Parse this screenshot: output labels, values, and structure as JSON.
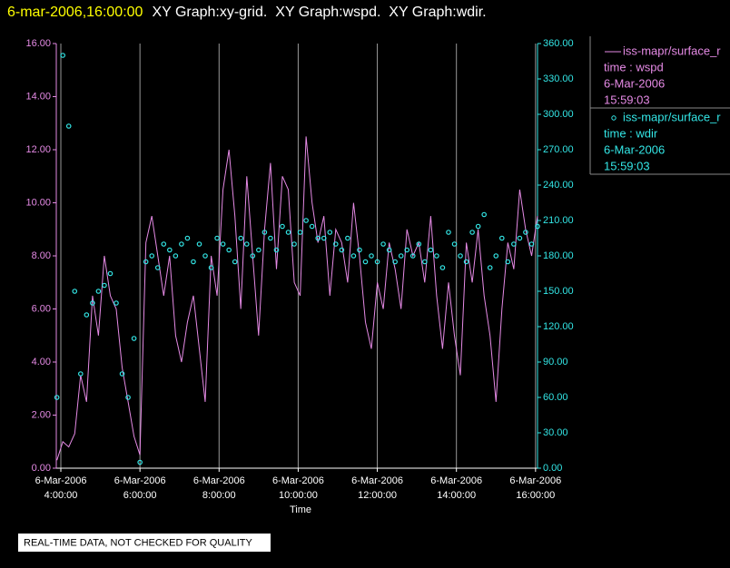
{
  "chart_data": {
    "type": "line",
    "title_time": "6-mar-2006,16:00:00",
    "title": "XY Graph:xy-grid.  XY Graph:wspd.  XY Graph:wdir.",
    "xlabel": "Time",
    "note": "REAL-TIME DATA, NOT CHECKED FOR QUALITY",
    "grid": true,
    "xlim": [
      3.885,
      16.05
    ],
    "ylim": [
      0,
      16
    ],
    "y2lim": [
      0,
      360
    ],
    "xticks": [
      {
        "value": 4,
        "label": "4:00:00",
        "date": "6-Mar-2006"
      },
      {
        "value": 6,
        "label": "6:00:00",
        "date": "6-Mar-2006"
      },
      {
        "value": 8,
        "label": "8:00:00",
        "date": "6-Mar-2006"
      },
      {
        "value": 10,
        "label": "10:00:00",
        "date": "6-Mar-2006"
      },
      {
        "value": 12,
        "label": "12:00:00",
        "date": "6-Mar-2006"
      },
      {
        "value": 14,
        "label": "14:00:00",
        "date": "6-Mar-2006"
      },
      {
        "value": 16,
        "label": "16:00:00",
        "date": "6-Mar-2006"
      }
    ],
    "yticks": [
      {
        "value": 0,
        "label": "0.00"
      },
      {
        "value": 2,
        "label": "2.00"
      },
      {
        "value": 4,
        "label": "4.00"
      },
      {
        "value": 6,
        "label": "6.00"
      },
      {
        "value": 8,
        "label": "8.00"
      },
      {
        "value": 10,
        "label": "10.00"
      },
      {
        "value": 12,
        "label": "12.00"
      },
      {
        "value": 14,
        "label": "14.00"
      },
      {
        "value": 16,
        "label": "16.00"
      }
    ],
    "y2ticks": [
      {
        "value": 0,
        "label": "0.00"
      },
      {
        "value": 30,
        "label": "30.00"
      },
      {
        "value": 60,
        "label": "60.00"
      },
      {
        "value": 90,
        "label": "90.00"
      },
      {
        "value": 120,
        "label": "120.00"
      },
      {
        "value": 150,
        "label": "150.00"
      },
      {
        "value": 180,
        "label": "180.00"
      },
      {
        "value": 210,
        "label": "210.00"
      },
      {
        "value": 240,
        "label": "240.00"
      },
      {
        "value": 270,
        "label": "270.00"
      },
      {
        "value": 300,
        "label": "300.00"
      },
      {
        "value": 330,
        "label": "330.00"
      },
      {
        "value": 360,
        "label": "360.00"
      }
    ],
    "x": [
      3.9,
      4.05,
      4.2,
      4.35,
      4.5,
      4.65,
      4.8,
      4.95,
      5.1,
      5.25,
      5.4,
      5.55,
      5.7,
      5.85,
      6.0,
      6.15,
      6.3,
      6.45,
      6.6,
      6.75,
      6.9,
      7.05,
      7.2,
      7.35,
      7.5,
      7.65,
      7.8,
      7.95,
      8.1,
      8.25,
      8.4,
      8.55,
      8.7,
      8.85,
      9.0,
      9.15,
      9.3,
      9.45,
      9.6,
      9.75,
      9.9,
      10.05,
      10.2,
      10.35,
      10.5,
      10.65,
      10.8,
      10.95,
      11.1,
      11.25,
      11.4,
      11.55,
      11.7,
      11.85,
      12.0,
      12.15,
      12.3,
      12.45,
      12.6,
      12.75,
      12.9,
      13.05,
      13.2,
      13.35,
      13.5,
      13.65,
      13.8,
      13.95,
      14.1,
      14.25,
      14.4,
      14.55,
      14.7,
      14.85,
      15.0,
      15.15,
      15.3,
      15.45,
      15.6,
      15.75,
      15.9,
      16.05
    ],
    "series": [
      {
        "name": "iss-mapr/surface_r",
        "legend_lines": [
          "time : wspd",
          "6-Mar-2006",
          "15:59:03"
        ],
        "color": "#e58ae5",
        "style": "line",
        "axis": "y",
        "values": [
          0.3,
          1.0,
          0.8,
          1.3,
          3.5,
          2.5,
          6.5,
          5.0,
          8.0,
          6.5,
          6.0,
          3.8,
          2.5,
          1.2,
          0.5,
          8.5,
          9.5,
          8.0,
          6.5,
          8.0,
          5.0,
          4.0,
          5.5,
          6.5,
          4.5,
          2.5,
          8.0,
          6.5,
          10.5,
          12.0,
          9.5,
          6.0,
          11.0,
          8.0,
          5.0,
          9.0,
          11.5,
          7.5,
          11.0,
          10.5,
          7.0,
          6.5,
          12.5,
          10.0,
          8.5,
          9.5,
          6.5,
          9.0,
          8.5,
          7.0,
          10.0,
          8.0,
          5.5,
          4.5,
          7.0,
          6.0,
          8.5,
          7.5,
          6.0,
          9.0,
          8.0,
          8.5,
          7.0,
          9.5,
          6.5,
          4.5,
          7.0,
          5.0,
          3.5,
          8.5,
          7.0,
          9.0,
          6.5,
          5.0,
          2.5,
          6.0,
          8.5,
          7.5,
          10.5,
          9.0,
          8.0,
          9.5
        ]
      },
      {
        "name": "iss-mapr/surface_r",
        "legend_lines": [
          "time : wdir",
          "6-Mar-2006",
          "15:59:03"
        ],
        "color": "#33e6e6",
        "style": "points",
        "axis": "y2",
        "values": [
          60,
          350,
          290,
          150,
          80,
          130,
          140,
          150,
          155,
          165,
          140,
          80,
          60,
          110,
          5,
          175,
          180,
          170,
          190,
          185,
          180,
          190,
          195,
          175,
          190,
          180,
          170,
          195,
          190,
          185,
          175,
          195,
          190,
          180,
          185,
          200,
          195,
          185,
          205,
          200,
          190,
          200,
          210,
          205,
          195,
          195,
          200,
          190,
          185,
          195,
          180,
          185,
          175,
          180,
          175,
          190,
          185,
          175,
          180,
          185,
          180,
          190,
          175,
          185,
          180,
          170,
          200,
          190,
          180,
          175,
          200,
          205,
          215,
          170,
          180,
          195,
          175,
          190,
          195,
          200,
          190,
          205
        ]
      }
    ]
  }
}
